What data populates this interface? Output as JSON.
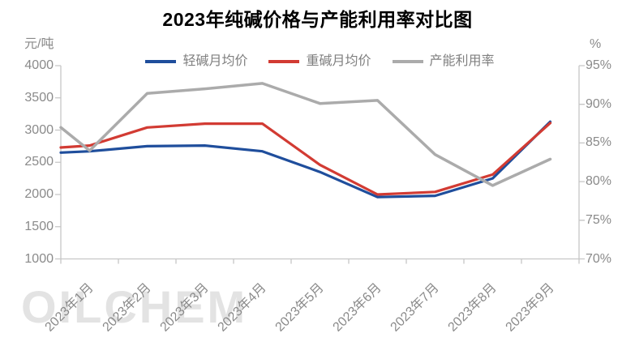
{
  "title": "2023年纯碱价格与产能利用率对比图",
  "watermark": "OILCHEM",
  "colors": {
    "light_soda": "#1F4E9C",
    "heavy_soda": "#D23B33",
    "utilization": "#ABABAB",
    "axis_line": "#C6C6C6",
    "tick_text": "#8A8A8A",
    "legend_text": "#7F7F7F",
    "title_text": "#000000",
    "watermark_text": "#E3E3E3"
  },
  "chart_data": {
    "type": "line",
    "title": "2023年纯碱价格与产能利用率对比图",
    "grid": false,
    "legend_position": "top",
    "categories": [
      "2023年1月",
      "2023年2月",
      "2023年3月",
      "2023年4月",
      "2023年5月",
      "2023年6月",
      "2023年7月",
      "2023年8月",
      "2023年9月"
    ],
    "series": [
      {
        "name": "轻碱月均价",
        "axis": "left",
        "color_key": "light_soda",
        "values": [
          2670,
          2750,
          2760,
          2670,
          2350,
          1960,
          1980,
          2250,
          3130
        ],
        "axis_edge_value": 2650,
        "stroke_width": 3.2
      },
      {
        "name": "重碱月均价",
        "axis": "left",
        "color_key": "heavy_soda",
        "values": [
          2760,
          3040,
          3100,
          3100,
          2460,
          2000,
          2040,
          2310,
          3110
        ],
        "axis_edge_value": 2730,
        "stroke_width": 3.2
      },
      {
        "name": "产能利用率",
        "axis": "right",
        "color_key": "utilization",
        "values": [
          84.0,
          91.4,
          92.0,
          92.7,
          90.1,
          90.5,
          83.5,
          79.5,
          82.9
        ],
        "axis_edge_value": 87.0,
        "stroke_width": 3.5
      }
    ],
    "left_axis": {
      "unit": "元/吨",
      "min": 1000,
      "max": 4000,
      "ticks": [
        "4000",
        "3500",
        "3000",
        "2500",
        "2000",
        "1500",
        "1000"
      ]
    },
    "right_axis": {
      "unit": "%",
      "min": 70,
      "max": 95,
      "ticks": [
        "95%",
        "90%",
        "85%",
        "80%",
        "75%",
        "70%"
      ]
    }
  }
}
